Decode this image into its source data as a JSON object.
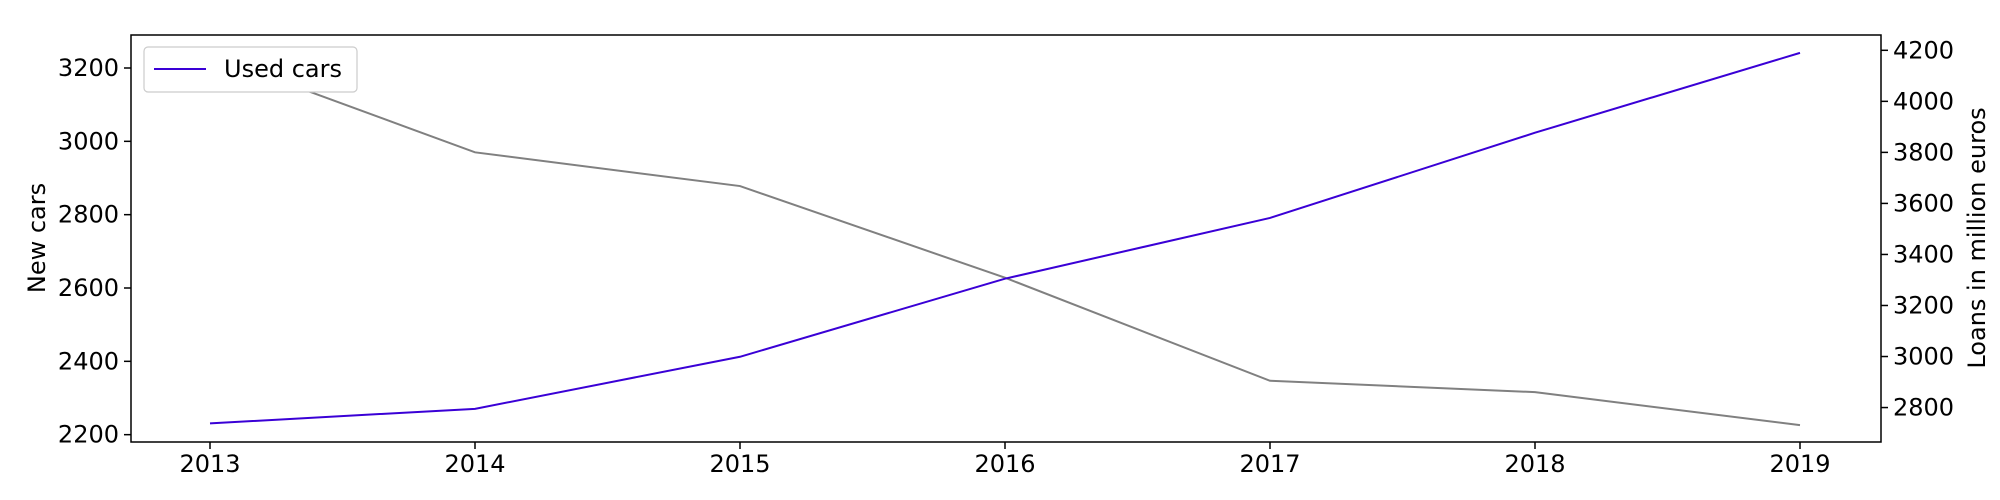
{
  "chart_data": {
    "type": "line",
    "categories": [
      "2013",
      "2014",
      "2015",
      "2016",
      "2017",
      "2018",
      "2019"
    ],
    "series": [
      {
        "name": "",
        "axis": "left",
        "color": "#808080",
        "values": [
          3235,
          2970,
          2878,
          2628,
          2347,
          2316,
          2226
        ]
      },
      {
        "name": "Used cars",
        "axis": "right",
        "color": "#3a00d6",
        "values": [
          2738,
          2795,
          2999,
          3305,
          3543,
          3877,
          4190
        ]
      }
    ],
    "y_left": {
      "label": "New cars",
      "ylim": [
        2180,
        3290
      ],
      "ticks": [
        "2200",
        "2400",
        "2600",
        "2800",
        "3000",
        "3200"
      ]
    },
    "y_right": {
      "label": "Loans in million euros",
      "ylim": [
        2665,
        4260
      ],
      "ticks": [
        "2800",
        "3000",
        "3200",
        "3400",
        "3600",
        "3800",
        "4000",
        "4200"
      ]
    },
    "legend": {
      "position": "top-left",
      "entries": [
        "Used cars"
      ]
    },
    "grid": false
  }
}
